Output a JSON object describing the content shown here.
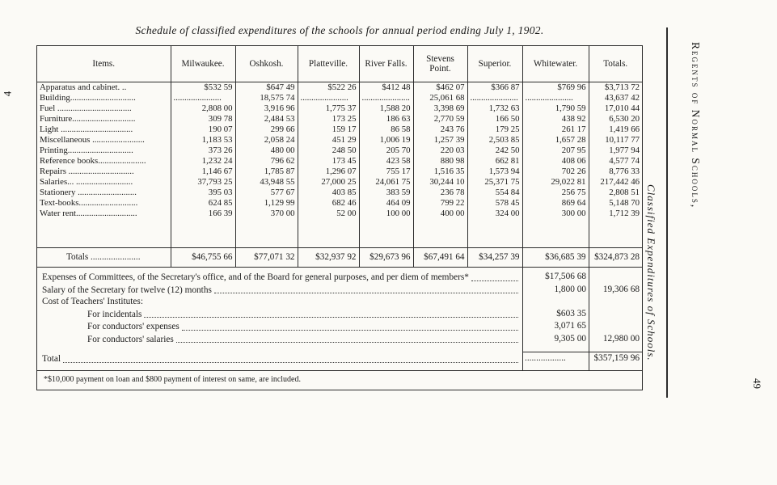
{
  "page": {
    "title": "Schedule of classified expenditures of the schools for annual period ending July 1, 1902.",
    "footnote": "*$10,000 payment on loan and $800 payment of interest on same, are included.",
    "margin_number": "4",
    "side_caption_italic": "Classified Expenditures of Schools.",
    "side_caption_caps": "Regents of Normal Schools,",
    "page_number": "49"
  },
  "table": {
    "columns": [
      "Items.",
      "Milwaukee.",
      "Oshkosh.",
      "Platteville.",
      "River Falls.",
      "Stevens Point.",
      "Superior.",
      "Whitewater.",
      "Totals."
    ],
    "rows": [
      {
        "item": "Apparatus and cabinet. ..",
        "values": [
          "$532 59",
          "$647 49",
          "$522 26",
          "$412 48",
          "$462 07",
          "$366 87",
          "$769 96",
          "$3,713 72"
        ]
      },
      {
        "item": "Building..............................",
        "values": [
          "......................",
          "18,575 74",
          "......................",
          "......................",
          "25,061 68",
          "......................",
          "......................",
          "43,637 42"
        ]
      },
      {
        "item": "Fuel ..................................",
        "values": [
          "2,808 00",
          "3,916 96",
          "1,775 37",
          "1,588 20",
          "3,398 69",
          "1,732 63",
          "1,790 59",
          "17,010 44"
        ]
      },
      {
        "item": "Furniture.............................",
        "values": [
          "309 78",
          "2,484 53",
          "173 25",
          "186 63",
          "2,770 59",
          "166 50",
          "438 92",
          "6,530 20"
        ]
      },
      {
        "item": "Light .................................",
        "values": [
          "190 07",
          "299 66",
          "159 17",
          "86 58",
          "243 76",
          "179 25",
          "261 17",
          "1,419 66"
        ]
      },
      {
        "item": "Miscellaneous ........................",
        "values": [
          "1,183 53",
          "2,058 24",
          "451 29",
          "1,006 19",
          "1,257 39",
          "2,503 85",
          "1,657 28",
          "10,117 77"
        ]
      },
      {
        "item": "Printing..............................",
        "values": [
          "373 26",
          "480 00",
          "248 50",
          "205 70",
          "220 03",
          "242 50",
          "207 95",
          "1,977 94"
        ]
      },
      {
        "item": "Reference books......................",
        "values": [
          "1,232 24",
          "796 62",
          "173 45",
          "423 58",
          "880 98",
          "662 81",
          "408 06",
          "4,577 74"
        ]
      },
      {
        "item": "Repairs ..............................",
        "values": [
          "1,146 67",
          "1,785 87",
          "1,296 07",
          "755 17",
          "1,516 35",
          "1,573 94",
          "702 26",
          "8,776 33"
        ]
      },
      {
        "item": "Salaries... ..........................",
        "values": [
          "37,793 25",
          "43,948 55",
          "27,000 25",
          "24,061 75",
          "30,244 10",
          "25,371 75",
          "29,022 81",
          "217,442 46"
        ]
      },
      {
        "item": "Stationery ...........................",
        "values": [
          "395 03",
          "577 67",
          "403 85",
          "383 59",
          "236 78",
          "554 84",
          "256 75",
          "2,808 51"
        ]
      },
      {
        "item": "Text-books...........................",
        "values": [
          "624 85",
          "1,129 99",
          "682 46",
          "464 09",
          "799 22",
          "578 45",
          "869 64",
          "5,148 70"
        ]
      },
      {
        "item": "Water rent............................",
        "values": [
          "166 39",
          "370 00",
          "52 00",
          "100 00",
          "400 00",
          "324 00",
          "300 00",
          "1,712 39"
        ]
      }
    ],
    "totals_row": {
      "item": "Totals ......................",
      "values": [
        "$46,755 66",
        "$77,071 32",
        "$32,937 92",
        "$29,673 96",
        "$67,491 64",
        "$34,257 39",
        "$36,685 39",
        "$324,873 28"
      ]
    }
  },
  "summary": {
    "lines": [
      {
        "text": "Expenses of Committees, of the Secretary's office, and of the Board for general purposes, and per diem of members*",
        "amount": "$17,506 68",
        "total": ""
      },
      {
        "text": "Salary of the Secretary for twelve (12) months",
        "amount": "1,800 00",
        "total": "19,306 68"
      },
      {
        "text": "Cost of Teachers' Institutes:",
        "amount": "",
        "total": ""
      },
      {
        "text": "For incidentals",
        "amount": "$603 35",
        "total": "",
        "indent": true
      },
      {
        "text": "For conductors' expenses",
        "amount": "3,071 65",
        "total": "",
        "indent": true
      },
      {
        "text": "For conductors' salaries",
        "amount": "9,305 00",
        "total": "12,980 00",
        "indent": true
      },
      {
        "text": "Total",
        "amount": "..................",
        "total": "$357,159 96",
        "final": true
      }
    ]
  }
}
